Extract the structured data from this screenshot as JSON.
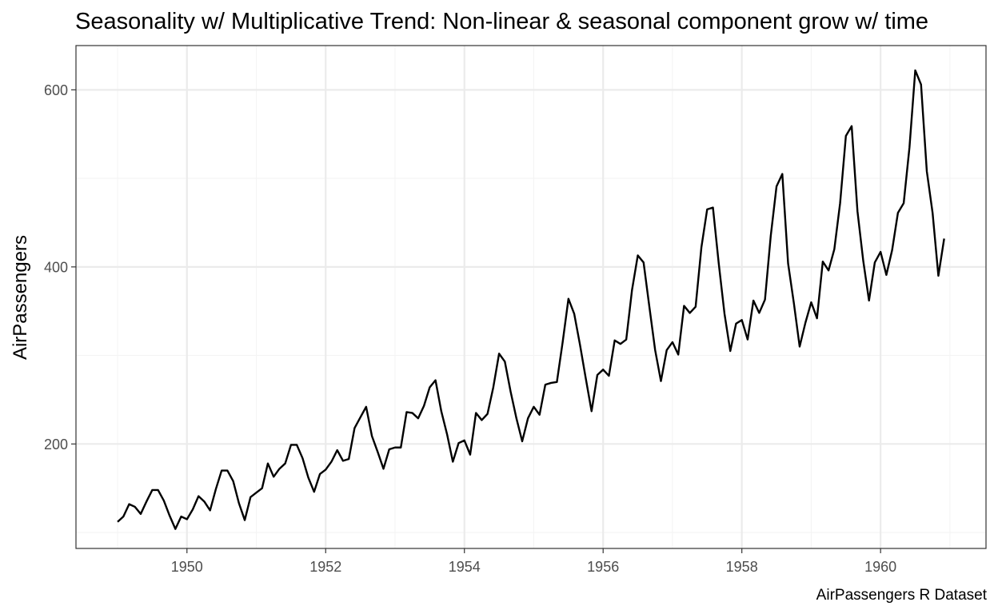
{
  "colors": {
    "background": "#ffffff",
    "panel_border": "#333333",
    "grid_major": "#ebebeb",
    "grid_minor": "#f4f4f4",
    "line": "#000000",
    "tick_text": "#4d4d4d"
  },
  "chart_data": {
    "type": "line",
    "title": "Seasonality w/ Multiplicative Trend: Non-linear & seasonal component grow w/ time",
    "xlabel": "",
    "ylabel": "AirPassengers",
    "caption": "AirPassengers R Dataset",
    "xlim": [
      1948.4,
      1961.52
    ],
    "ylim": [
      82,
      650
    ],
    "x_ticks": [
      1950,
      1952,
      1954,
      1956,
      1958,
      1960
    ],
    "y_ticks": [
      200,
      400,
      600
    ],
    "y_minor_ticks": [
      100,
      300,
      500
    ],
    "grid": true,
    "legend": "none",
    "series": [
      {
        "x_start": 1949,
        "x_step": 0.0833333,
        "values": [
          112,
          118,
          132,
          129,
          121,
          135,
          148,
          148,
          136,
          119,
          104,
          118,
          115,
          126,
          141,
          135,
          125,
          149,
          170,
          170,
          158,
          133,
          114,
          140,
          145,
          150,
          178,
          163,
          172,
          178,
          199,
          199,
          184,
          162,
          146,
          166,
          171,
          180,
          193,
          181,
          183,
          218,
          230,
          242,
          209,
          191,
          172,
          194,
          196,
          196,
          236,
          235,
          229,
          243,
          264,
          272,
          237,
          211,
          180,
          201,
          204,
          188,
          235,
          227,
          234,
          264,
          302,
          293,
          259,
          229,
          203,
          229,
          242,
          233,
          267,
          269,
          270,
          315,
          364,
          347,
          312,
          274,
          237,
          278,
          284,
          277,
          317,
          313,
          318,
          374,
          413,
          405,
          355,
          306,
          271,
          306,
          315,
          301,
          356,
          348,
          355,
          422,
          465,
          467,
          404,
          347,
          305,
          336,
          340,
          318,
          362,
          348,
          363,
          435,
          491,
          505,
          404,
          359,
          310,
          337,
          360,
          342,
          406,
          396,
          420,
          472,
          548,
          559,
          463,
          407,
          362,
          405,
          417,
          391,
          419,
          461,
          472,
          535,
          622,
          606,
          508,
          461,
          390,
          432
        ]
      }
    ]
  }
}
